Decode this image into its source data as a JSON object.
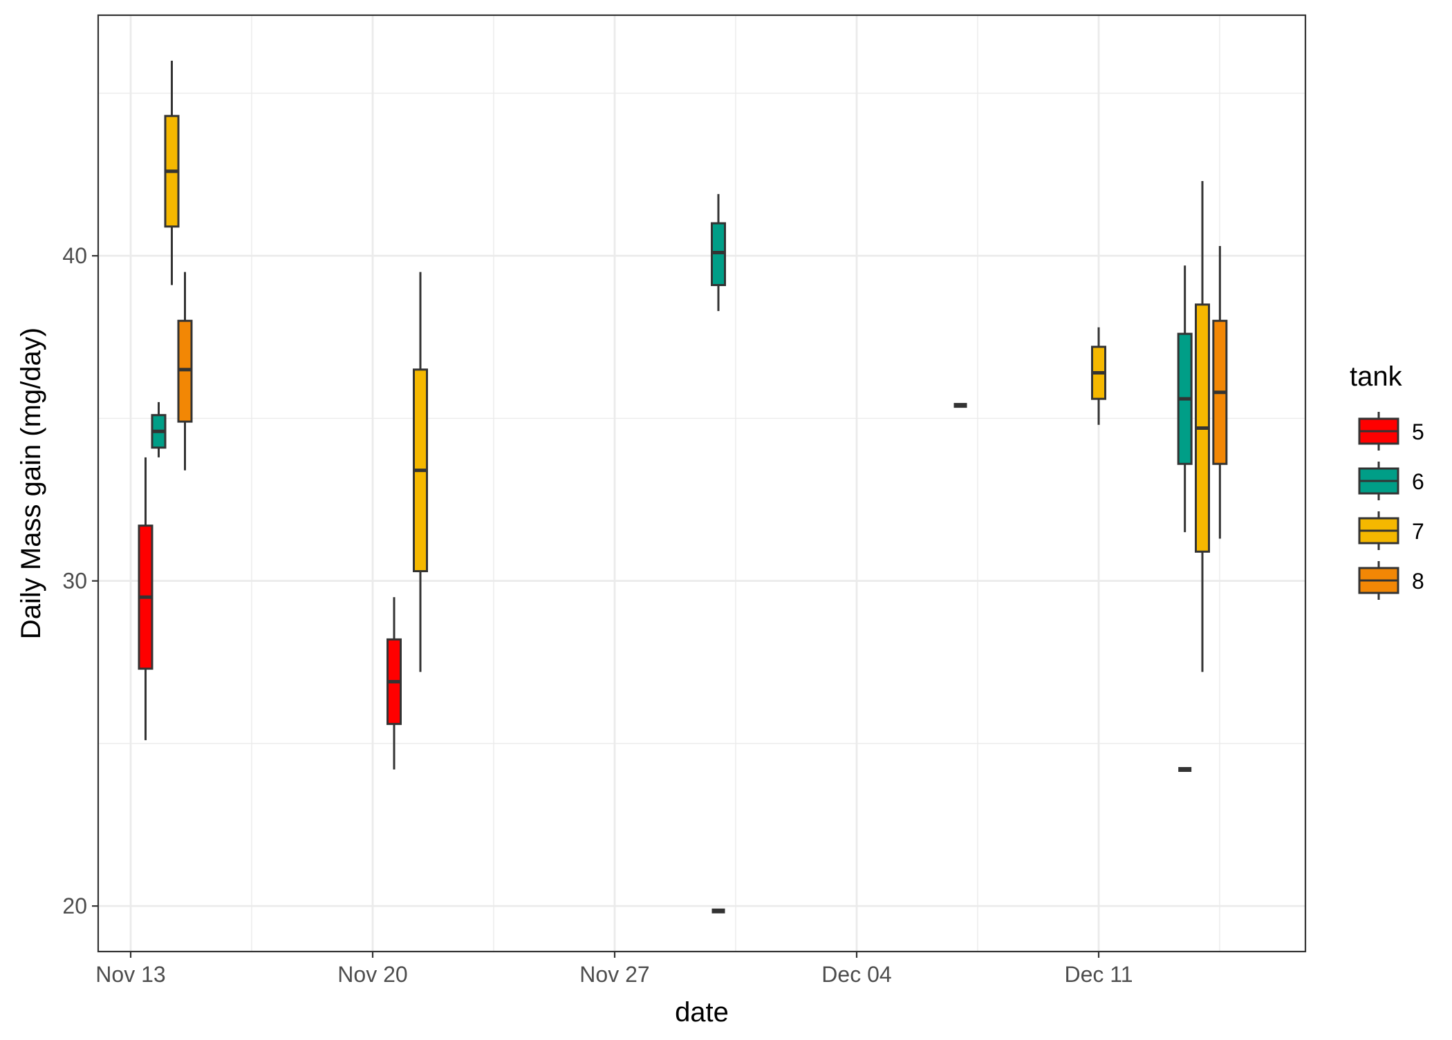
{
  "chart_data": {
    "type": "box",
    "xlabel": "date",
    "ylabel": "Daily Mass gain (mg/day)",
    "x_axis": {
      "type": "date",
      "ticks": [
        {
          "date": "2023-11-13",
          "label": "Nov 13"
        },
        {
          "date": "2023-11-20",
          "label": "Nov 20"
        },
        {
          "date": "2023-11-27",
          "label": "Nov 27"
        },
        {
          "date": "2023-12-04",
          "label": "Dec 04"
        },
        {
          "date": "2023-12-11",
          "label": "Dec 11"
        }
      ]
    },
    "y_axis": {
      "ylim": [
        18.6,
        47.4
      ],
      "ticks": [
        20,
        30,
        40
      ]
    },
    "grid": true,
    "legend": {
      "title": "tank",
      "placement": "right",
      "entries": [
        {
          "label": "5",
          "color": "#FF0000"
        },
        {
          "label": "6",
          "color": "#009E87"
        },
        {
          "label": "7",
          "color": "#F5B800"
        },
        {
          "label": "8",
          "color": "#F28705"
        }
      ]
    },
    "series": [
      {
        "tank": "5",
        "color": "#FF0000",
        "boxes": [
          {
            "date": "2023-11-14",
            "min": 25.1,
            "q1": 27.3,
            "median": 29.5,
            "q3": 31.7,
            "max": 33.8
          },
          {
            "date": "2023-11-21",
            "min": 24.2,
            "q1": 25.6,
            "median": 26.9,
            "q3": 28.2,
            "max": 29.5
          }
        ]
      },
      {
        "tank": "6",
        "color": "#009E87",
        "boxes": [
          {
            "date": "2023-11-14",
            "min": 33.8,
            "q1": 34.1,
            "median": 34.6,
            "q3": 35.1,
            "max": 35.5
          },
          {
            "date": "2023-11-30",
            "min": 19.85,
            "q1": 19.85,
            "median": 19.85,
            "q3": 19.85,
            "max": 19.85
          },
          {
            "date": "2023-11-30",
            "min": 38.3,
            "q1": 39.1,
            "median": 40.1,
            "q3": 41.0,
            "max": 41.9
          },
          {
            "date": "2023-12-07",
            "min": 35.4,
            "q1": 35.4,
            "median": 35.4,
            "q3": 35.4,
            "max": 35.4
          },
          {
            "date": "2023-12-14",
            "min": 24.2,
            "q1": 24.2,
            "median": 24.2,
            "q3": 24.2,
            "max": 24.2
          },
          {
            "date": "2023-12-14",
            "min": 31.5,
            "q1": 33.6,
            "median": 35.6,
            "q3": 37.6,
            "max": 39.7
          }
        ]
      },
      {
        "tank": "7",
        "color": "#F5B800",
        "boxes": [
          {
            "date": "2023-11-14",
            "min": 39.1,
            "q1": 40.9,
            "median": 42.6,
            "q3": 44.3,
            "max": 46.0
          },
          {
            "date": "2023-11-21",
            "min": 27.2,
            "q1": 30.3,
            "median": 33.4,
            "q3": 36.5,
            "max": 39.5
          },
          {
            "date": "2023-12-11",
            "min": 34.8,
            "q1": 35.6,
            "median": 36.4,
            "q3": 37.2,
            "max": 37.8
          },
          {
            "date": "2023-12-14",
            "min": 27.2,
            "q1": 30.9,
            "median": 34.7,
            "q3": 38.5,
            "max": 42.3
          }
        ]
      },
      {
        "tank": "8",
        "color": "#F28705",
        "boxes": [
          {
            "date": "2023-11-14",
            "min": 33.4,
            "q1": 34.9,
            "median": 36.5,
            "q3": 38.0,
            "max": 39.5
          },
          {
            "date": "2023-12-14",
            "min": 31.3,
            "q1": 33.6,
            "median": 35.8,
            "q3": 38.0,
            "max": 40.3
          }
        ]
      }
    ]
  }
}
